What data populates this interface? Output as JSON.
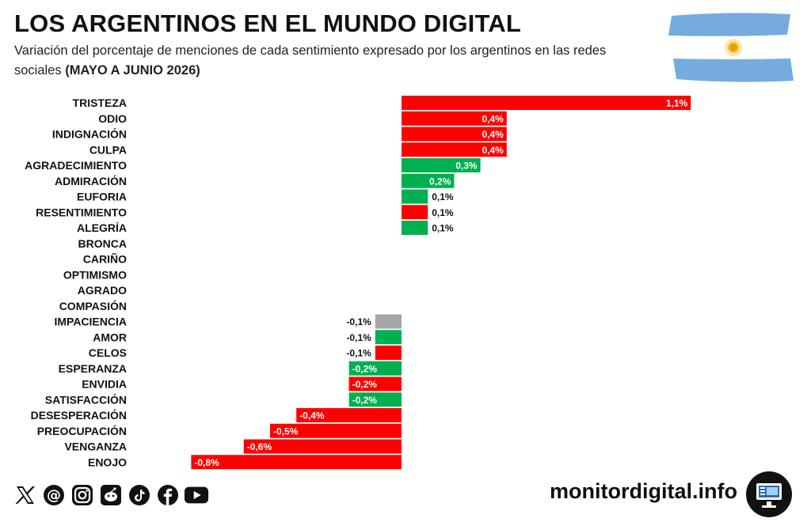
{
  "header": {
    "title": "LOS ARGENTINOS EN EL MUNDO DIGITAL",
    "subtitle_text": "Variación del porcentaje de menciones de cada sentimiento expresado por los argentinos en las redes sociales ",
    "subtitle_bold": "(MAYO A JUNIO 2026)"
  },
  "colors": {
    "negative_sentiment": "#ff0000",
    "positive_sentiment": "#00b050",
    "neutral_sentiment": "#a6a6a6",
    "flag_blue": "#74acdf",
    "flag_sun": "#f6b40e"
  },
  "chart_data": {
    "type": "bar",
    "orientation": "horizontal",
    "categories": [
      "TRISTEZA",
      "ODIO",
      "INDIGNACIÓN",
      "CULPA",
      "AGRADECIMIENTO",
      "ADMIRACIÓN",
      "EUFORIA",
      "RESENTIMIENTO",
      "ALEGRÍA",
      "BRONCA",
      "CARIÑO",
      "OPTIMISMO",
      "AGRADO",
      "COMPASIÓN",
      "IMPACIENCIA",
      "AMOR",
      "CELOS",
      "ESPERANZA",
      "ENVIDIA",
      "SATISFACCIÓN",
      "DESESPERACIÓN",
      "PREOCUPACIÓN",
      "VENGANZA",
      "ENOJO"
    ],
    "values": [
      1.1,
      0.4,
      0.4,
      0.4,
      0.3,
      0.2,
      0.1,
      0.1,
      0.1,
      0,
      0,
      0,
      0,
      0,
      -0.1,
      -0.1,
      -0.1,
      -0.2,
      -0.2,
      -0.2,
      -0.4,
      -0.5,
      -0.6,
      -0.8
    ],
    "labels": [
      "1,1%",
      "0,4%",
      "0,4%",
      "0,4%",
      "0,3%",
      "0,2%",
      "0,1%",
      "0,1%",
      "0,1%",
      "",
      "",
      "",
      "",
      "",
      "-0,1%",
      "-0,1%",
      "-0,1%",
      "-0,2%",
      "-0,2%",
      "-0,2%",
      "-0,4%",
      "-0,5%",
      "-0,6%",
      "-0,8%"
    ],
    "bar_colors": [
      "#ff0000",
      "#ff0000",
      "#ff0000",
      "#ff0000",
      "#00b050",
      "#00b050",
      "#00b050",
      "#ff0000",
      "#00b050",
      "#ff0000",
      "#00b050",
      "#00b050",
      "#00b050",
      "#00b050",
      "#a6a6a6",
      "#00b050",
      "#ff0000",
      "#00b050",
      "#ff0000",
      "#00b050",
      "#ff0000",
      "#ff0000",
      "#ff0000",
      "#ff0000"
    ],
    "xlim": [
      -0.8,
      1.1
    ],
    "grid": false,
    "legend": "none"
  },
  "footer": {
    "social_icons": [
      "x-icon",
      "threads-icon",
      "instagram-icon",
      "reddit-icon",
      "tiktok-icon",
      "facebook-icon",
      "youtube-icon"
    ],
    "website": "monitordigital.info",
    "badge_icon": "monitor-icon"
  }
}
